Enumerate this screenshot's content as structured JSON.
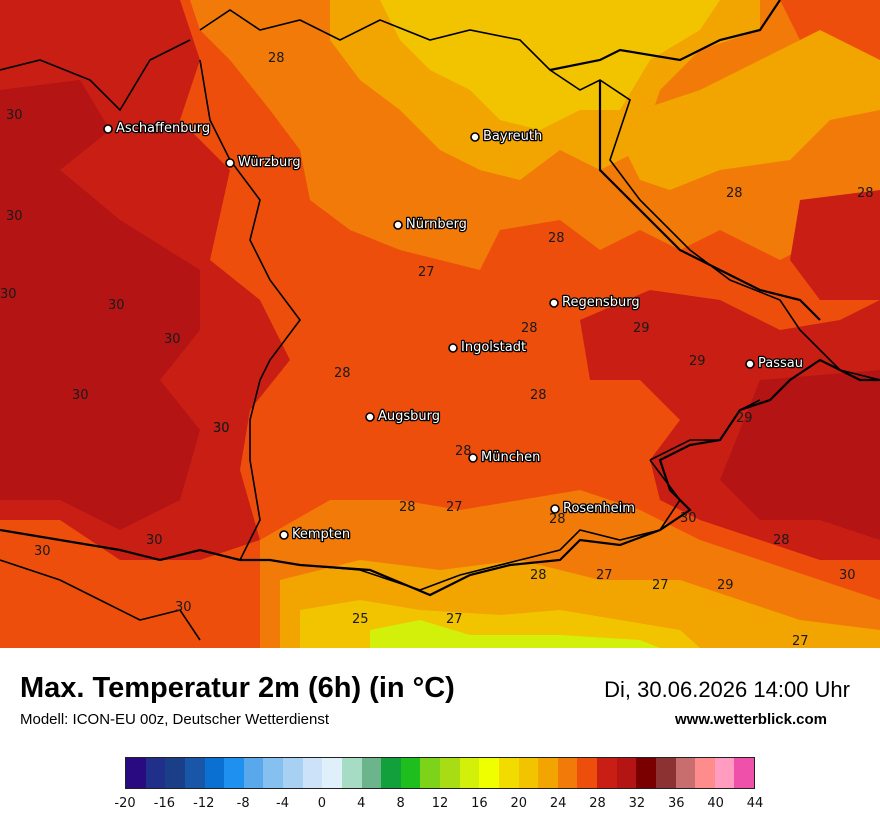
{
  "header": {
    "title": "Max. Temperatur 2m (6h) (in °C)",
    "subtitle": "Modell: ICON-EU 00z, Deutscher Wetterdienst",
    "datetime": "Di, 30.06.2026 14:00 Uhr",
    "website": "www.wetterblick.com"
  },
  "legend": {
    "colors": [
      "#2a0a80",
      "#1f2f8a",
      "#1a3f88",
      "#1956a8",
      "#0a70d2",
      "#1e90f0",
      "#5aa8ec",
      "#86c0f0",
      "#a8d0f2",
      "#cce2f8",
      "#dff0fb",
      "#a6dcc4",
      "#6cb48c",
      "#12a03c",
      "#1ebe1e",
      "#7dd21a",
      "#a8dc14",
      "#d2f00a",
      "#f0ff00",
      "#f2dc00",
      "#f2c400",
      "#f2a400",
      "#f27a08",
      "#ee4e0c",
      "#c81e14",
      "#b41414",
      "#7a0000",
      "#8c3232",
      "#c86e6e",
      "#ff8c8c",
      "#ff9cc0",
      "#ee50aa"
    ],
    "ticks": [
      "-20",
      "-16",
      "-12",
      "-8",
      "-4",
      "0",
      "4",
      "8",
      "12",
      "16",
      "20",
      "24",
      "28",
      "32",
      "36",
      "40",
      "44"
    ]
  },
  "map": {
    "palette": {
      "t25": "#f2c400",
      "t26": "#f2a400",
      "t27": "#f27a08",
      "t28": "#ee4e0c",
      "t29": "#c81e14",
      "t30": "#b41414",
      "t20": "#d2f00a",
      "border": "#000000"
    },
    "cities": [
      {
        "name": "Aschaffenburg"
      },
      {
        "name": "Würzburg"
      },
      {
        "name": "Bayreuth"
      },
      {
        "name": "Nürnberg"
      },
      {
        "name": "Regensburg"
      },
      {
        "name": "Ingolstadt"
      },
      {
        "name": "Passau"
      },
      {
        "name": "Augsburg"
      },
      {
        "name": "München"
      },
      {
        "name": "Rosenheim"
      },
      {
        "name": "Kempten"
      }
    ],
    "value_labels": [
      "28",
      "30",
      "30",
      "30",
      "30",
      "30",
      "28",
      "28",
      "28",
      "27",
      "28",
      "29",
      "29",
      "30",
      "28",
      "30",
      "28",
      "29",
      "28",
      "29",
      "30",
      "30",
      "28",
      "27",
      "28",
      "30",
      "28",
      "28",
      "27",
      "27",
      "29",
      "30",
      "30",
      "25",
      "27",
      "27"
    ]
  }
}
